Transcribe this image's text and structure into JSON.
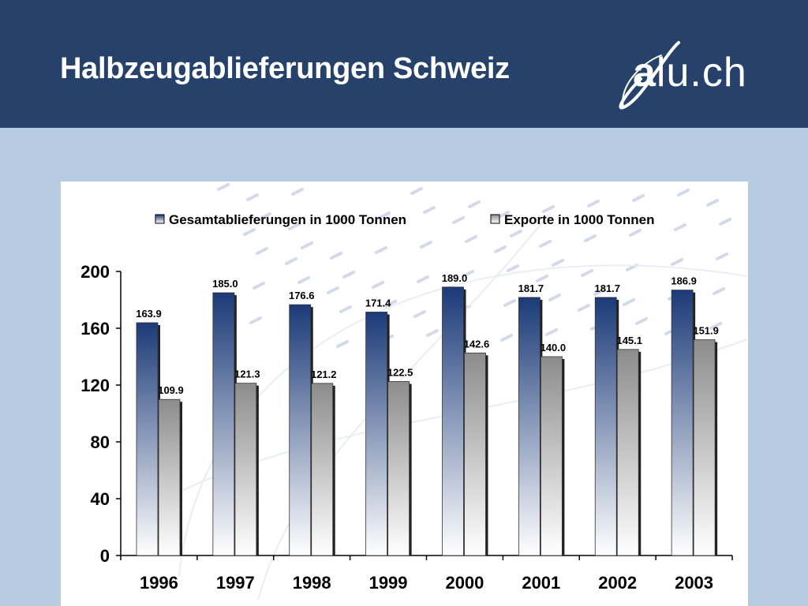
{
  "header": {
    "title": "Halbzeugablieferungen Schweiz",
    "logo_text_a": "a",
    "logo_text_rest": "lu.ch"
  },
  "colors": {
    "header_bg": "#27426a",
    "page_bg": "#b7cce3",
    "series_total_top": "#1b3a78",
    "series_export_top": "#8c8c8c"
  },
  "chart_data": {
    "type": "bar",
    "categories": [
      "1996",
      "1997",
      "1998",
      "1999",
      "2000",
      "2001",
      "2002",
      "2003"
    ],
    "series": [
      {
        "name": "Gesamtablieferungen in 1000 Tonnen",
        "values": [
          163.9,
          185.0,
          176.6,
          171.4,
          189.0,
          181.7,
          181.7,
          186.9
        ]
      },
      {
        "name": "Exporte in 1000 Tonnen",
        "values": [
          109.9,
          121.3,
          121.2,
          122.5,
          142.6,
          140.0,
          145.1,
          151.9
        ]
      }
    ],
    "ylim": [
      0,
      200
    ],
    "yticks": [
      0,
      40,
      80,
      120,
      160,
      200
    ],
    "legend": "top",
    "grid": false
  }
}
